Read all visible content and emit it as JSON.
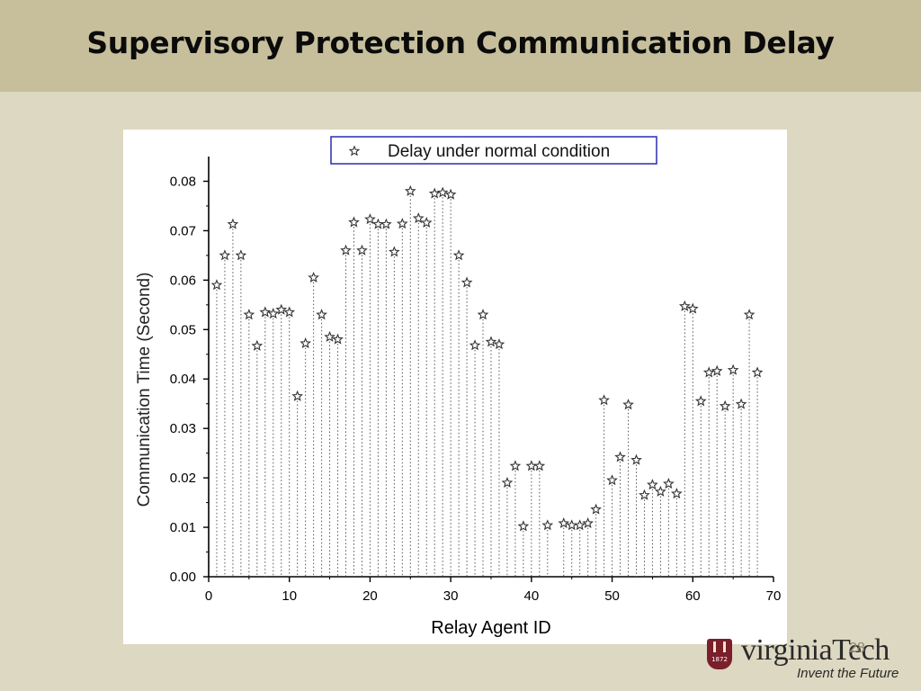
{
  "slide": {
    "title": "Supervisory Protection Communication Delay",
    "slide_number": "28"
  },
  "logo": {
    "year": "1872",
    "wordmark": "virginiaTech",
    "tagline": "Invent the Future"
  },
  "colors": {
    "title_bar": "#c7bf9c",
    "background": "#ddd8c1",
    "marker": "#333333",
    "stem": "#555555",
    "legend_border": "#2b2bb0",
    "logo_maroon": "#7a1f2b"
  },
  "chart_data": {
    "type": "scatter",
    "title": "",
    "xlabel": "Relay Agent ID",
    "ylabel": "Communication Time (Second)",
    "xlim": [
      0,
      70
    ],
    "ylim": [
      0,
      0.085
    ],
    "xticks": [
      "0",
      "10",
      "20",
      "30",
      "40",
      "50",
      "60",
      "70"
    ],
    "yticks": [
      "0.00",
      "0.01",
      "0.02",
      "0.03",
      "0.04",
      "0.05",
      "0.06",
      "0.07",
      "0.08"
    ],
    "grid": false,
    "drop_lines": "dotted vertical lines from each point to the x-axis",
    "marker": "star-outline",
    "legend": {
      "position": "top-center",
      "entries": [
        "Delay under normal condition"
      ]
    },
    "series": [
      {
        "name": "Delay under normal condition",
        "points": [
          [
            1,
            0.059
          ],
          [
            2,
            0.065
          ],
          [
            3,
            0.0713
          ],
          [
            4,
            0.065
          ],
          [
            5,
            0.053
          ],
          [
            6,
            0.0467
          ],
          [
            7,
            0.0535
          ],
          [
            8,
            0.0532
          ],
          [
            9,
            0.054
          ],
          [
            10,
            0.0535
          ],
          [
            11,
            0.0365
          ],
          [
            12,
            0.0472
          ],
          [
            13,
            0.0605
          ],
          [
            14,
            0.053
          ],
          [
            15,
            0.0485
          ],
          [
            16,
            0.048
          ],
          [
            17,
            0.066
          ],
          [
            18,
            0.0717
          ],
          [
            19,
            0.066
          ],
          [
            20,
            0.0723
          ],
          [
            21,
            0.0713
          ],
          [
            22,
            0.0713
          ],
          [
            23,
            0.0657
          ],
          [
            24,
            0.0714
          ],
          [
            25,
            0.078
          ],
          [
            26,
            0.0725
          ],
          [
            27,
            0.0716
          ],
          [
            28,
            0.0775
          ],
          [
            29,
            0.0777
          ],
          [
            30,
            0.0773
          ],
          [
            31,
            0.065
          ],
          [
            32,
            0.0595
          ],
          [
            33,
            0.0468
          ],
          [
            34,
            0.053
          ],
          [
            35,
            0.0475
          ],
          [
            36,
            0.047
          ],
          [
            37,
            0.019
          ],
          [
            38,
            0.0224
          ],
          [
            39,
            0.0102
          ],
          [
            40,
            0.0224
          ],
          [
            41,
            0.0224
          ],
          [
            42,
            0.0104
          ],
          [
            44,
            0.0108
          ],
          [
            45,
            0.0104
          ],
          [
            46,
            0.0104
          ],
          [
            47,
            0.0108
          ],
          [
            48,
            0.0136
          ],
          [
            49,
            0.0357
          ],
          [
            50,
            0.0195
          ],
          [
            51,
            0.0242
          ],
          [
            52,
            0.0348
          ],
          [
            53,
            0.0236
          ],
          [
            54,
            0.0165
          ],
          [
            55,
            0.0186
          ],
          [
            56,
            0.0172
          ],
          [
            57,
            0.0188
          ],
          [
            58,
            0.0168
          ],
          [
            59,
            0.0547
          ],
          [
            60,
            0.0542
          ],
          [
            61,
            0.0355
          ],
          [
            62,
            0.0413
          ],
          [
            63,
            0.0416
          ],
          [
            64,
            0.0345
          ],
          [
            65,
            0.0418
          ],
          [
            66,
            0.0349
          ],
          [
            67,
            0.053
          ],
          [
            68,
            0.0413
          ]
        ]
      }
    ]
  }
}
